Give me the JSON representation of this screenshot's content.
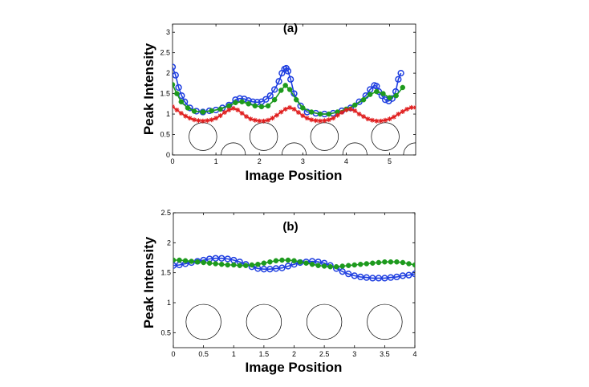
{
  "chart_data": [
    {
      "type": "line",
      "title": "(a)",
      "xlabel": "Image Position",
      "ylabel": "Peak Intensity",
      "xlim": [
        0,
        5.6
      ],
      "ylim": [
        0,
        3.2
      ],
      "xticks": [
        0,
        1,
        2,
        3,
        4,
        5
      ],
      "yticks": [
        0,
        0.5,
        1,
        1.5,
        2,
        2.5,
        3
      ],
      "xtick_labels": [
        "0",
        "1",
        "2",
        "3",
        "4",
        "5"
      ],
      "ytick_labels": [
        "0",
        "0.5",
        "1",
        "1.5",
        "2",
        "2.5",
        "3"
      ],
      "grid": false,
      "series": [
        {
          "name": "blue",
          "color": "#1f3fe0",
          "marker": "circle-open",
          "x": [
            0.0,
            0.07,
            0.14,
            0.21,
            0.28,
            0.4,
            0.55,
            0.7,
            0.85,
            1.0,
            1.15,
            1.3,
            1.45,
            1.55,
            1.65,
            1.75,
            1.85,
            1.95,
            2.05,
            2.15,
            2.25,
            2.35,
            2.45,
            2.52,
            2.58,
            2.62,
            2.66,
            2.72,
            2.8,
            2.95,
            3.1,
            3.3,
            3.5,
            3.7,
            3.9,
            4.1,
            4.3,
            4.45,
            4.55,
            4.65,
            4.7,
            4.75,
            4.82,
            4.9,
            4.98,
            5.06,
            5.14,
            5.2,
            5.26
          ],
          "y": [
            2.15,
            1.95,
            1.65,
            1.45,
            1.3,
            1.15,
            1.07,
            1.05,
            1.08,
            1.1,
            1.15,
            1.22,
            1.35,
            1.38,
            1.37,
            1.33,
            1.3,
            1.29,
            1.3,
            1.36,
            1.45,
            1.6,
            1.8,
            2.0,
            2.1,
            2.12,
            2.05,
            1.85,
            1.5,
            1.2,
            1.05,
            1.02,
            1.0,
            1.02,
            1.08,
            1.15,
            1.3,
            1.45,
            1.6,
            1.7,
            1.68,
            1.55,
            1.45,
            1.35,
            1.32,
            1.38,
            1.55,
            1.85,
            2.0
          ]
        },
        {
          "name": "green",
          "color": "#1d9a1d",
          "marker": "dot",
          "x": [
            0.0,
            0.1,
            0.2,
            0.35,
            0.5,
            0.7,
            0.9,
            1.1,
            1.3,
            1.45,
            1.6,
            1.75,
            1.9,
            2.05,
            2.2,
            2.35,
            2.5,
            2.6,
            2.7,
            2.85,
            3.0,
            3.2,
            3.4,
            3.6,
            3.8,
            4.0,
            4.2,
            4.4,
            4.55,
            4.7,
            4.85,
            5.0,
            5.15,
            5.3
          ],
          "y": [
            1.72,
            1.5,
            1.3,
            1.15,
            1.07,
            1.05,
            1.08,
            1.12,
            1.2,
            1.28,
            1.3,
            1.25,
            1.2,
            1.18,
            1.2,
            1.35,
            1.58,
            1.7,
            1.6,
            1.35,
            1.15,
            1.05,
            1.0,
            1.0,
            1.05,
            1.12,
            1.22,
            1.35,
            1.48,
            1.55,
            1.5,
            1.4,
            1.45,
            1.65
          ]
        },
        {
          "name": "red",
          "color": "#e01f1f",
          "marker": "star",
          "x": [
            0.0,
            0.1,
            0.2,
            0.3,
            0.4,
            0.5,
            0.6,
            0.7,
            0.8,
            0.9,
            1.0,
            1.1,
            1.2,
            1.3,
            1.4,
            1.5,
            1.6,
            1.7,
            1.8,
            1.9,
            2.0,
            2.1,
            2.2,
            2.3,
            2.4,
            2.5,
            2.6,
            2.7,
            2.8,
            2.9,
            3.0,
            3.1,
            3.2,
            3.3,
            3.4,
            3.5,
            3.6,
            3.7,
            3.8,
            3.9,
            4.0,
            4.1,
            4.2,
            4.3,
            4.4,
            4.5,
            4.6,
            4.7,
            4.8,
            4.9,
            5.0,
            5.1,
            5.2,
            5.3,
            5.4,
            5.5,
            5.6
          ],
          "y": [
            1.18,
            1.1,
            1.02,
            0.95,
            0.9,
            0.86,
            0.84,
            0.83,
            0.84,
            0.86,
            0.9,
            0.96,
            1.04,
            1.1,
            1.14,
            1.1,
            1.02,
            0.94,
            0.88,
            0.85,
            0.83,
            0.83,
            0.85,
            0.9,
            0.97,
            1.05,
            1.12,
            1.16,
            1.12,
            1.04,
            0.96,
            0.9,
            0.86,
            0.84,
            0.83,
            0.84,
            0.86,
            0.9,
            0.97,
            1.04,
            1.1,
            1.12,
            1.08,
            1.0,
            0.94,
            0.88,
            0.85,
            0.83,
            0.83,
            0.85,
            0.88,
            0.93,
            1.0,
            1.06,
            1.12,
            1.16,
            1.16
          ]
        }
      ],
      "annotations": [
        {
          "kind": "circle",
          "cx": 0.7,
          "cy": 0.45,
          "r": 0.32
        },
        {
          "kind": "circle",
          "cx": 2.1,
          "cy": 0.45,
          "r": 0.32
        },
        {
          "kind": "circle",
          "cx": 3.5,
          "cy": 0.45,
          "r": 0.32
        },
        {
          "kind": "circle",
          "cx": 4.9,
          "cy": 0.45,
          "r": 0.32
        },
        {
          "kind": "half-circle",
          "cx": 1.4,
          "cy": 0.0,
          "r": 0.28
        },
        {
          "kind": "half-circle",
          "cx": 2.8,
          "cy": 0.0,
          "r": 0.28
        },
        {
          "kind": "half-circle",
          "cx": 4.2,
          "cy": 0.0,
          "r": 0.28
        },
        {
          "kind": "half-circle",
          "cx": 5.6,
          "cy": 0.0,
          "r": 0.28
        }
      ]
    },
    {
      "type": "line",
      "title": "(b)",
      "xlabel": "Image Position",
      "ylabel": "Peak Intensity",
      "xlim": [
        0,
        4
      ],
      "ylim": [
        0.25,
        2.5
      ],
      "xticks": [
        0,
        0.5,
        1,
        1.5,
        2,
        2.5,
        3,
        3.5,
        4
      ],
      "yticks": [
        0.5,
        1,
        1.5,
        2,
        2.5
      ],
      "xtick_labels": [
        "0",
        "0.5",
        "1",
        "1.5",
        "2",
        "2.5",
        "3",
        "3.5",
        "4"
      ],
      "ytick_labels": [
        "0.5",
        "1",
        "1.5",
        "2",
        "2.5"
      ],
      "grid": false,
      "series": [
        {
          "name": "blue",
          "color": "#1f3fe0",
          "marker": "circle-open",
          "x": [
            0.0,
            0.1,
            0.2,
            0.3,
            0.4,
            0.5,
            0.6,
            0.7,
            0.8,
            0.9,
            1.0,
            1.1,
            1.2,
            1.3,
            1.4,
            1.5,
            1.6,
            1.7,
            1.8,
            1.9,
            2.0,
            2.1,
            2.2,
            2.3,
            2.4,
            2.5,
            2.6,
            2.7,
            2.8,
            2.9,
            3.0,
            3.1,
            3.2,
            3.3,
            3.4,
            3.5,
            3.6,
            3.7,
            3.8,
            3.9,
            4.0
          ],
          "y": [
            1.62,
            1.63,
            1.65,
            1.67,
            1.69,
            1.71,
            1.73,
            1.74,
            1.74,
            1.73,
            1.71,
            1.68,
            1.64,
            1.6,
            1.57,
            1.56,
            1.56,
            1.57,
            1.58,
            1.61,
            1.64,
            1.67,
            1.68,
            1.69,
            1.68,
            1.66,
            1.62,
            1.57,
            1.52,
            1.48,
            1.45,
            1.43,
            1.42,
            1.41,
            1.41,
            1.41,
            1.42,
            1.43,
            1.45,
            1.46,
            1.48
          ]
        },
        {
          "name": "green",
          "color": "#1d9a1d",
          "marker": "dot",
          "x": [
            0.0,
            0.1,
            0.2,
            0.3,
            0.4,
            0.5,
            0.6,
            0.7,
            0.8,
            0.9,
            1.0,
            1.1,
            1.2,
            1.3,
            1.4,
            1.5,
            1.6,
            1.7,
            1.8,
            1.9,
            2.0,
            2.1,
            2.2,
            2.3,
            2.4,
            2.5,
            2.6,
            2.7,
            2.8,
            2.9,
            3.0,
            3.1,
            3.2,
            3.3,
            3.4,
            3.5,
            3.6,
            3.7,
            3.8,
            3.9,
            4.0
          ],
          "y": [
            1.71,
            1.71,
            1.7,
            1.69,
            1.68,
            1.67,
            1.66,
            1.65,
            1.64,
            1.63,
            1.63,
            1.62,
            1.62,
            1.63,
            1.64,
            1.66,
            1.68,
            1.7,
            1.71,
            1.71,
            1.7,
            1.68,
            1.66,
            1.64,
            1.62,
            1.61,
            1.6,
            1.6,
            1.61,
            1.62,
            1.63,
            1.64,
            1.65,
            1.66,
            1.67,
            1.68,
            1.68,
            1.68,
            1.67,
            1.65,
            1.63
          ]
        }
      ],
      "annotations": [
        {
          "kind": "circle",
          "cx": 0.5,
          "cy": 0.68,
          "r": 0.29
        },
        {
          "kind": "circle",
          "cx": 1.5,
          "cy": 0.68,
          "r": 0.29
        },
        {
          "kind": "circle",
          "cx": 2.5,
          "cy": 0.68,
          "r": 0.29
        },
        {
          "kind": "circle",
          "cx": 3.5,
          "cy": 0.68,
          "r": 0.29
        }
      ]
    }
  ]
}
